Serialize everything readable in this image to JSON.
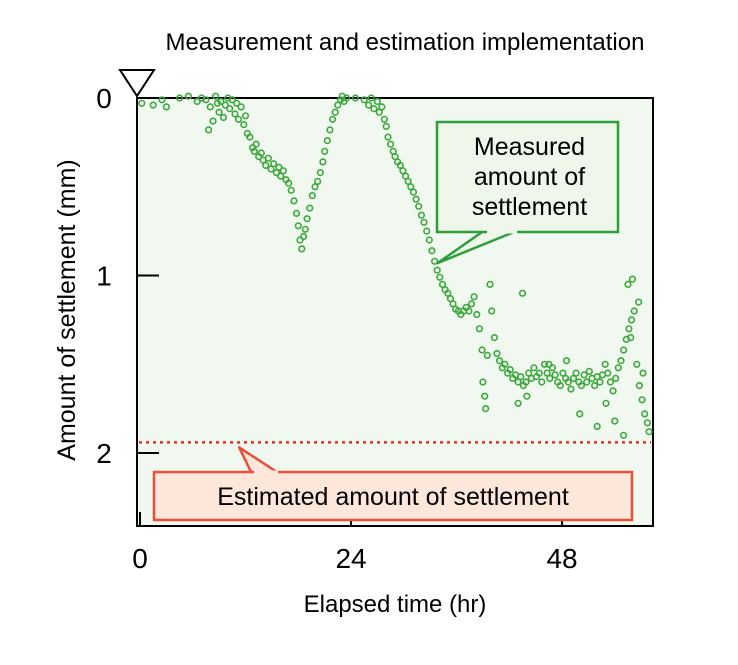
{
  "chart_data": {
    "type": "scatter",
    "title": "Measurement and estimation implementation",
    "xlabel": "Elapsed time (hr)",
    "ylabel": "Amount of settlement (mm)",
    "xlim": [
      0,
      58
    ],
    "ylim": [
      2.4,
      0
    ],
    "y_inverted": true,
    "x_ticks": [
      0,
      24,
      48
    ],
    "x_tick_labels": [
      "0",
      "24",
      "48"
    ],
    "y_ticks": [
      0,
      1,
      2
    ],
    "y_tick_labels": [
      "0",
      "1",
      "2"
    ],
    "grid": false,
    "series": [
      {
        "name": "Measured amount of settlement",
        "color": "#3aa83a",
        "marker": "hollow-circle",
        "points": [
          [
            0.2,
            0.03
          ],
          [
            1.5,
            0.04
          ],
          [
            2.5,
            0.01
          ],
          [
            3.0,
            0.05
          ],
          [
            4.5,
            0.0
          ],
          [
            5.5,
            -0.01
          ],
          [
            6.5,
            0.02
          ],
          [
            7.0,
            0.0
          ],
          [
            7.5,
            0.01
          ],
          [
            7.8,
            0.18
          ],
          [
            8.0,
            0.05
          ],
          [
            8.3,
            0.13
          ],
          [
            8.6,
            -0.01
          ],
          [
            8.8,
            0.03
          ],
          [
            9.0,
            0.08
          ],
          [
            9.2,
            0.02
          ],
          [
            9.5,
            0.11
          ],
          [
            9.7,
            0.04
          ],
          [
            10.0,
            0.0
          ],
          [
            10.2,
            0.06
          ],
          [
            10.5,
            0.01
          ],
          [
            10.8,
            0.09
          ],
          [
            11.0,
            0.03
          ],
          [
            11.2,
            0.12
          ],
          [
            11.5,
            0.05
          ],
          [
            11.8,
            0.15
          ],
          [
            12.0,
            0.1
          ],
          [
            12.2,
            0.2
          ],
          [
            12.5,
            0.22
          ],
          [
            12.8,
            0.28
          ],
          [
            13.0,
            0.3
          ],
          [
            13.2,
            0.26
          ],
          [
            13.5,
            0.33
          ],
          [
            13.8,
            0.31
          ],
          [
            14.0,
            0.35
          ],
          [
            14.3,
            0.38
          ],
          [
            14.6,
            0.34
          ],
          [
            14.9,
            0.4
          ],
          [
            15.2,
            0.37
          ],
          [
            15.5,
            0.42
          ],
          [
            15.8,
            0.39
          ],
          [
            16.0,
            0.44
          ],
          [
            16.3,
            0.41
          ],
          [
            16.6,
            0.46
          ],
          [
            16.9,
            0.48
          ],
          [
            17.2,
            0.52
          ],
          [
            17.5,
            0.58
          ],
          [
            17.8,
            0.65
          ],
          [
            18.0,
            0.72
          ],
          [
            18.2,
            0.8
          ],
          [
            18.4,
            0.85
          ],
          [
            18.6,
            0.78
          ],
          [
            18.8,
            0.74
          ],
          [
            19.0,
            0.68
          ],
          [
            19.3,
            0.62
          ],
          [
            19.6,
            0.55
          ],
          [
            19.9,
            0.5
          ],
          [
            20.2,
            0.47
          ],
          [
            20.5,
            0.42
          ],
          [
            20.8,
            0.36
          ],
          [
            21.0,
            0.3
          ],
          [
            21.3,
            0.24
          ],
          [
            21.6,
            0.18
          ],
          [
            21.9,
            0.12
          ],
          [
            22.2,
            0.08
          ],
          [
            22.5,
            0.04
          ],
          [
            22.8,
            0.01
          ],
          [
            23.0,
            -0.01
          ],
          [
            23.2,
            0.02
          ],
          [
            23.5,
            0.0
          ],
          [
            24.5,
            0.0
          ],
          [
            25.5,
            0.01
          ],
          [
            26.0,
            0.04
          ],
          [
            26.3,
            0.0
          ],
          [
            26.6,
            0.06
          ],
          [
            27.0,
            0.02
          ],
          [
            27.2,
            0.08
          ],
          [
            27.5,
            0.05
          ],
          [
            27.8,
            0.12
          ],
          [
            28.0,
            0.16
          ],
          [
            28.2,
            0.22
          ],
          [
            28.5,
            0.26
          ],
          [
            28.8,
            0.3
          ],
          [
            29.0,
            0.33
          ],
          [
            29.3,
            0.36
          ],
          [
            29.6,
            0.38
          ],
          [
            29.9,
            0.41
          ],
          [
            30.2,
            0.44
          ],
          [
            30.5,
            0.47
          ],
          [
            30.8,
            0.5
          ],
          [
            31.1,
            0.53
          ],
          [
            31.4,
            0.57
          ],
          [
            31.7,
            0.61
          ],
          [
            32.0,
            0.66
          ],
          [
            32.3,
            0.7
          ],
          [
            32.6,
            0.75
          ],
          [
            32.9,
            0.8
          ],
          [
            33.2,
            0.86
          ],
          [
            33.5,
            0.92
          ],
          [
            33.8,
            0.97
          ],
          [
            34.1,
            1.01
          ],
          [
            34.4,
            1.05
          ],
          [
            34.7,
            1.08
          ],
          [
            35.0,
            1.1
          ],
          [
            35.3,
            1.13
          ],
          [
            35.6,
            1.16
          ],
          [
            35.9,
            1.19
          ],
          [
            36.2,
            1.2
          ],
          [
            36.5,
            1.22
          ],
          [
            36.8,
            1.2
          ],
          [
            37.1,
            1.18
          ],
          [
            37.4,
            1.2
          ],
          [
            37.7,
            1.16
          ],
          [
            38.0,
            1.12
          ],
          [
            38.3,
            1.22
          ],
          [
            38.6,
            1.3
          ],
          [
            38.9,
            1.42
          ],
          [
            39.0,
            1.6
          ],
          [
            39.2,
            1.68
          ],
          [
            39.3,
            1.75
          ],
          [
            39.5,
            1.45
          ],
          [
            39.8,
            1.05
          ],
          [
            40.0,
            1.2
          ],
          [
            40.3,
            1.35
          ],
          [
            40.6,
            1.44
          ],
          [
            40.9,
            1.48
          ],
          [
            41.2,
            1.52
          ],
          [
            41.5,
            1.5
          ],
          [
            41.8,
            1.55
          ],
          [
            42.1,
            1.53
          ],
          [
            42.4,
            1.58
          ],
          [
            42.7,
            1.56
          ],
          [
            43.0,
            1.6
          ],
          [
            43.3,
            1.57
          ],
          [
            43.6,
            1.62
          ],
          [
            43.9,
            1.6
          ],
          [
            44.2,
            1.55
          ],
          [
            44.5,
            1.58
          ],
          [
            44.8,
            1.52
          ],
          [
            45.1,
            1.57
          ],
          [
            45.4,
            1.55
          ],
          [
            45.7,
            1.6
          ],
          [
            46.0,
            1.5
          ],
          [
            46.3,
            1.55
          ],
          [
            46.6,
            1.58
          ],
          [
            46.9,
            1.52
          ],
          [
            47.2,
            1.56
          ],
          [
            47.5,
            1.6
          ],
          [
            47.8,
            1.62
          ],
          [
            48.1,
            1.55
          ],
          [
            48.4,
            1.58
          ],
          [
            48.7,
            1.6
          ],
          [
            49.0,
            1.64
          ],
          [
            49.3,
            1.58
          ],
          [
            49.6,
            1.55
          ],
          [
            49.9,
            1.6
          ],
          [
            50.2,
            1.62
          ],
          [
            50.5,
            1.56
          ],
          [
            50.8,
            1.6
          ],
          [
            51.1,
            1.54
          ],
          [
            51.4,
            1.58
          ],
          [
            51.7,
            1.62
          ],
          [
            52.0,
            1.57
          ],
          [
            52.3,
            1.6
          ],
          [
            52.6,
            1.56
          ],
          [
            52.9,
            1.5
          ],
          [
            53.2,
            1.55
          ],
          [
            53.5,
            1.6
          ],
          [
            53.8,
            1.65
          ],
          [
            54.1,
            1.58
          ],
          [
            54.4,
            1.52
          ],
          [
            54.7,
            1.48
          ],
          [
            55.0,
            1.42
          ],
          [
            55.3,
            1.36
          ],
          [
            55.6,
            1.3
          ],
          [
            55.9,
            1.25
          ],
          [
            56.2,
            1.2
          ],
          [
            56.5,
            1.5
          ],
          [
            56.8,
            1.62
          ],
          [
            57.1,
            1.7
          ],
          [
            57.4,
            1.78
          ],
          [
            57.7,
            1.83
          ],
          [
            57.9,
            1.88
          ],
          [
            43.0,
            1.72
          ],
          [
            44.0,
            1.68
          ],
          [
            50.0,
            1.78
          ],
          [
            52.0,
            1.85
          ],
          [
            54.0,
            1.82
          ],
          [
            55.0,
            1.9
          ],
          [
            43.5,
            1.1
          ],
          [
            55.5,
            1.05
          ],
          [
            56.0,
            1.02
          ],
          [
            46.5,
            1.5
          ],
          [
            48.5,
            1.48
          ],
          [
            53.0,
            1.72
          ],
          [
            55.8,
            1.35
          ],
          [
            56.7,
            1.15
          ],
          [
            57.2,
            1.55
          ]
        ]
      }
    ],
    "reference_lines": [
      {
        "name": "Estimated amount of settlement",
        "y": 1.94,
        "color": "#e53228",
        "style": "dotted"
      }
    ],
    "annotations": [
      {
        "text": "Measured amount of settlement",
        "lines": [
          "Measured",
          "amount of",
          "settlement"
        ],
        "border_color": "#2e9e3a",
        "fill_color": "#eef7ea",
        "points_to": [
          33.5,
          0.93
        ]
      },
      {
        "text": "Estimated amount of settlement",
        "border_color": "#e8503a",
        "fill_color": "#fde6da",
        "points_to": [
          11.5,
          1.94
        ]
      }
    ],
    "markers": [
      {
        "name": "ground-level-marker",
        "shape": "inverted-triangle",
        "at": [
          0,
          0
        ]
      }
    ],
    "plot_background": "#f1f8f0"
  }
}
